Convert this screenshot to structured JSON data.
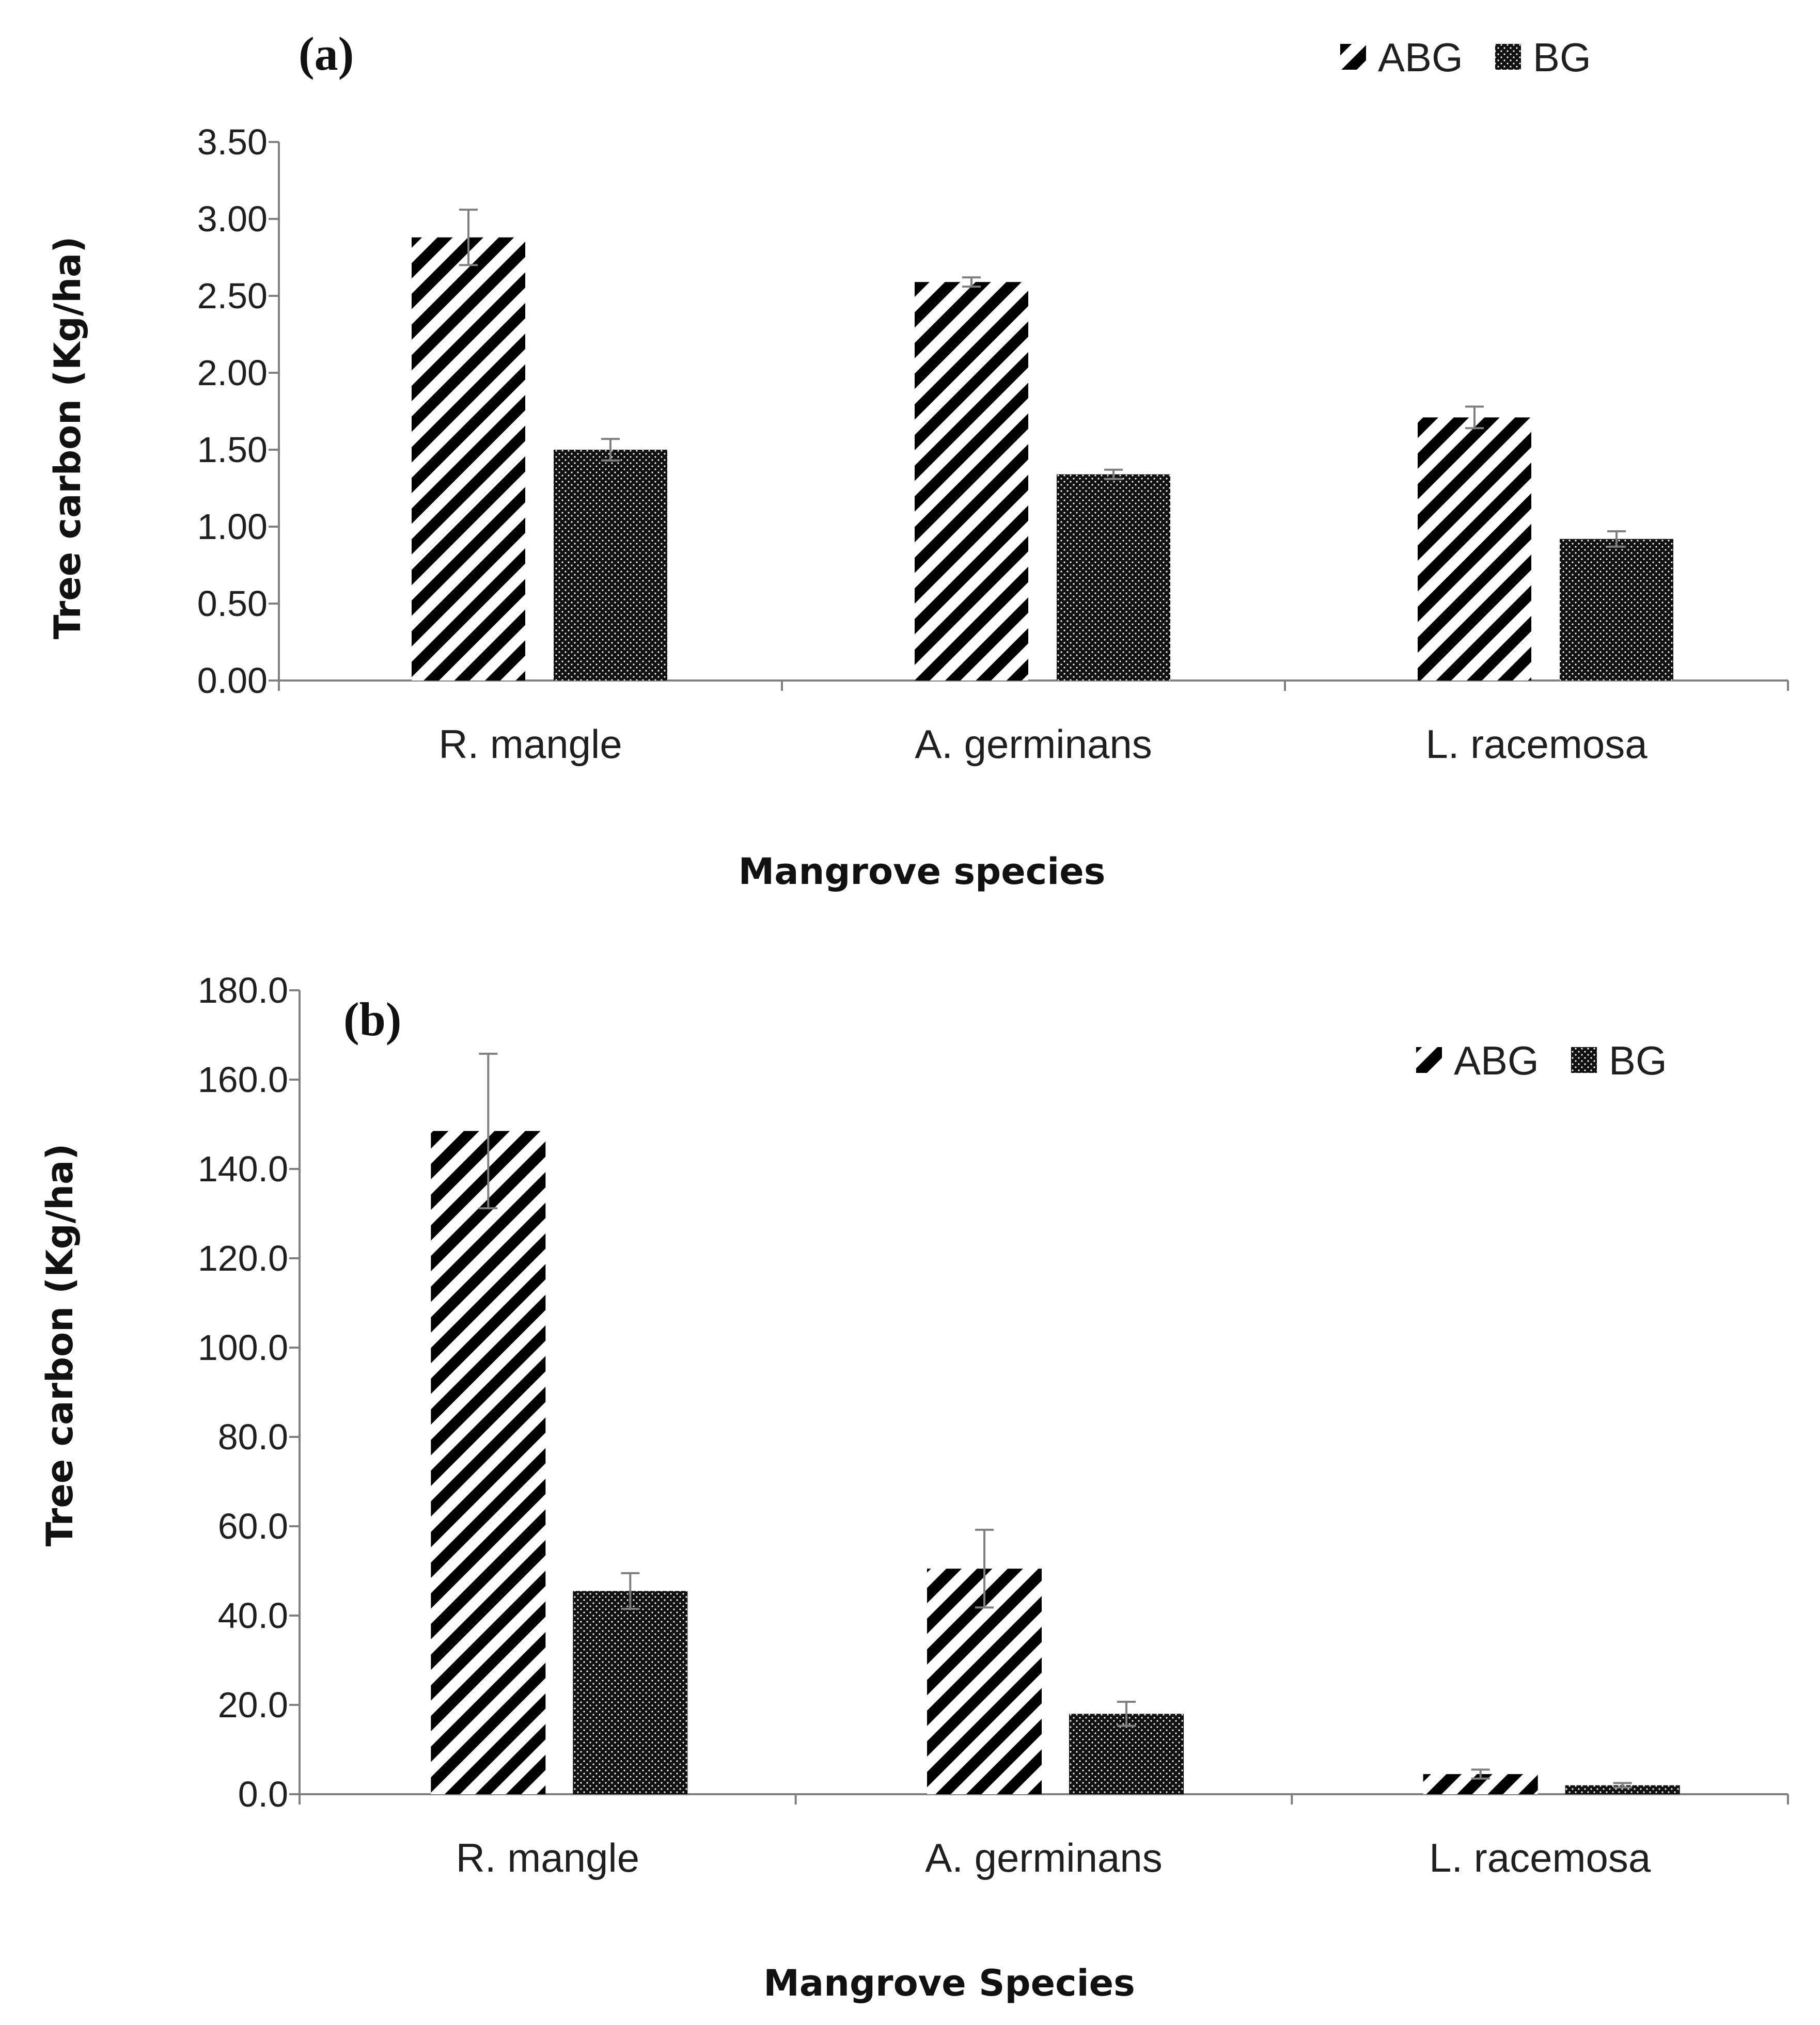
{
  "chart_data": [
    {
      "type": "bar",
      "panel_label": "(a)",
      "categories": [
        "R. mangle",
        "A. germinans",
        "L. racemosa"
      ],
      "series": [
        {
          "name": "ABG",
          "values": [
            2.88,
            2.59,
            1.71
          ],
          "errors": [
            0.18,
            0.03,
            0.07
          ]
        },
        {
          "name": "BG",
          "values": [
            1.5,
            1.34,
            0.92
          ],
          "errors": [
            0.07,
            0.03,
            0.05
          ]
        }
      ],
      "xlabel": "Mangrove species",
      "ylabel": "Tree carbon (Kg/ha)",
      "ylim": [
        0,
        3.5
      ],
      "yticks": [
        "0.00",
        "0.50",
        "1.00",
        "1.50",
        "2.00",
        "2.50",
        "3.00",
        "3.50"
      ],
      "legend": [
        "ABG",
        "BG"
      ],
      "legend_position": "top-right"
    },
    {
      "type": "bar",
      "panel_label": "(b)",
      "categories": [
        "R. mangle",
        "A. germinans",
        "L. racemosa"
      ],
      "series": [
        {
          "name": "ABG",
          "values": [
            148.5,
            50.5,
            4.5
          ],
          "errors": [
            17.3,
            8.7,
            1.0
          ]
        },
        {
          "name": "BG",
          "values": [
            45.5,
            18.0,
            2.0
          ],
          "errors": [
            4.0,
            2.7,
            0.5
          ]
        }
      ],
      "xlabel": "Mangrove Species",
      "ylabel": "Tree carbon (Kg/ha)",
      "ylim": [
        0,
        180
      ],
      "yticks": [
        "0.0",
        "20.0",
        "40.0",
        "60.0",
        "80.0",
        "100.0",
        "120.0",
        "140.0",
        "160.0",
        "180.0"
      ],
      "legend": [
        "ABG",
        "BG"
      ],
      "legend_position": "top-right"
    }
  ]
}
